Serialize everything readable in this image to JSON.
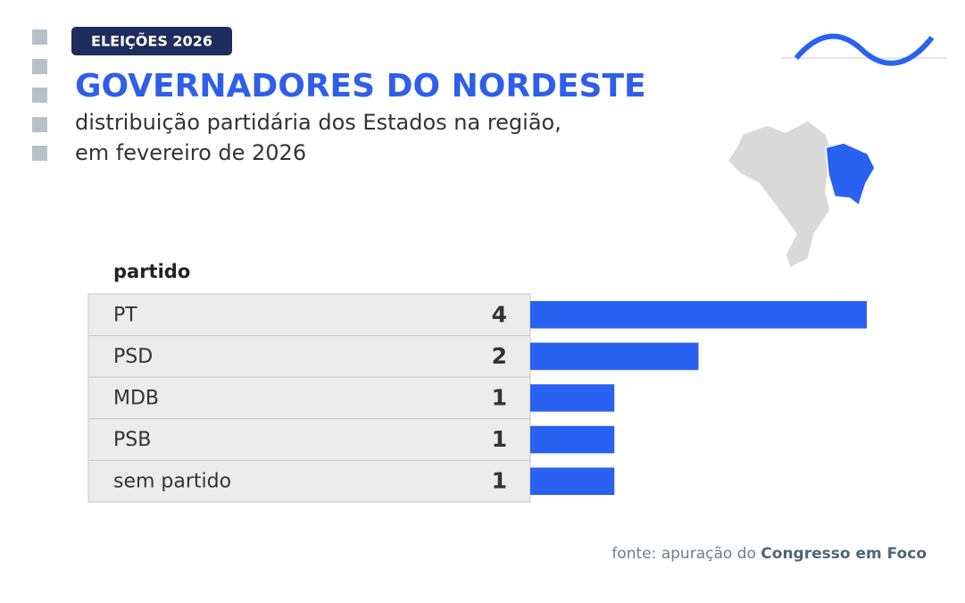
{
  "tag": "ELEIÇÕES 2026",
  "title": "GOVERNADORES DO NORDESTE",
  "subtitle": [
    "distribuição partidária dos Estados na região,",
    "em fevereiro de 2026"
  ],
  "source": {
    "prefix": "fonte: apuração do",
    "name": "Congresso em Foco"
  },
  "chart_data": {
    "type": "bar",
    "orientation": "horizontal",
    "column_header": "partido",
    "categories": [
      "PT",
      "PSD",
      "MDB",
      "PSB",
      "sem partido"
    ],
    "values": [
      4,
      2,
      1,
      1,
      1
    ],
    "color": "#2962f0"
  }
}
